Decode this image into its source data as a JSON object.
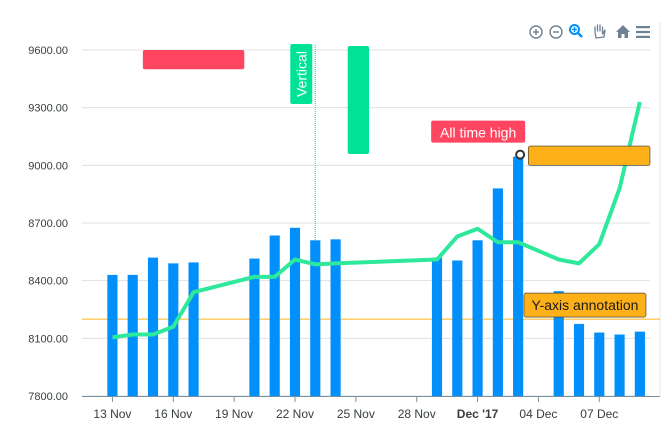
{
  "chart_data": {
    "type": "bar",
    "ylim": [
      7800,
      9600
    ],
    "y_ticks": [
      "7800.00",
      "8100.00",
      "8400.00",
      "8700.00",
      "9000.00",
      "9300.00",
      "9600.00"
    ],
    "y_tick_values": [
      7800,
      8100,
      8400,
      8700,
      9000,
      9300,
      9600
    ],
    "x_range": [
      "2017-11-12",
      "2017-12-09"
    ],
    "x_ticks": [
      {
        "date": "2017-11-13",
        "label": "13 Nov",
        "bold": false
      },
      {
        "date": "2017-11-16",
        "label": "16 Nov",
        "bold": false
      },
      {
        "date": "2017-11-19",
        "label": "19 Nov",
        "bold": false
      },
      {
        "date": "2017-11-22",
        "label": "22 Nov",
        "bold": false
      },
      {
        "date": "2017-11-25",
        "label": "25 Nov",
        "bold": false
      },
      {
        "date": "2017-11-28",
        "label": "28 Nov",
        "bold": false
      },
      {
        "date": "2017-12-01",
        "label": "Dec '17",
        "bold": true
      },
      {
        "date": "2017-12-04",
        "label": "04 Dec",
        "bold": false
      },
      {
        "date": "2017-12-07",
        "label": "07 Dec",
        "bold": false
      }
    ],
    "grid": true,
    "series": [
      {
        "kind": "bar",
        "color": "#008ffb",
        "points": [
          {
            "x": "2017-11-13",
            "y": 8430
          },
          {
            "x": "2017-11-14",
            "y": 8430
          },
          {
            "x": "2017-11-15",
            "y": 8520
          },
          {
            "x": "2017-11-16",
            "y": 8490
          },
          {
            "x": "2017-11-17",
            "y": 8495
          },
          {
            "x": "2017-11-20",
            "y": 8515
          },
          {
            "x": "2017-11-21",
            "y": 8635
          },
          {
            "x": "2017-11-22",
            "y": 8675
          },
          {
            "x": "2017-11-23",
            "y": 8610
          },
          {
            "x": "2017-11-24",
            "y": 8615
          },
          {
            "x": "2017-11-29",
            "y": 8520
          },
          {
            "x": "2017-11-30",
            "y": 8505
          },
          {
            "x": "2017-12-01",
            "y": 8610
          },
          {
            "x": "2017-12-02",
            "y": 8880
          },
          {
            "x": "2017-12-03",
            "y": 9045
          },
          {
            "x": "2017-12-05",
            "y": 8345
          },
          {
            "x": "2017-12-06",
            "y": 8175
          },
          {
            "x": "2017-12-07",
            "y": 8130
          },
          {
            "x": "2017-12-08",
            "y": 8120
          },
          {
            "x": "2017-12-09",
            "y": 8135
          }
        ]
      },
      {
        "kind": "line",
        "color": "#2ee89b",
        "points": [
          {
            "x": "2017-11-13",
            "y": 8105
          },
          {
            "x": "2017-11-14",
            "y": 8120
          },
          {
            "x": "2017-11-15",
            "y": 8120
          },
          {
            "x": "2017-11-16",
            "y": 8160
          },
          {
            "x": "2017-11-17",
            "y": 8340
          },
          {
            "x": "2017-11-20",
            "y": 8420
          },
          {
            "x": "2017-11-21",
            "y": 8420
          },
          {
            "x": "2017-11-22",
            "y": 8510
          },
          {
            "x": "2017-11-23",
            "y": 8485
          },
          {
            "x": "2017-11-24",
            "y": 8490
          },
          {
            "x": "2017-11-29",
            "y": 8510
          },
          {
            "x": "2017-11-30",
            "y": 8630
          },
          {
            "x": "2017-12-01",
            "y": 8670
          },
          {
            "x": "2017-12-02",
            "y": 8600
          },
          {
            "x": "2017-12-03",
            "y": 8600
          },
          {
            "x": "2017-12-05",
            "y": 8510
          },
          {
            "x": "2017-12-06",
            "y": 8490
          },
          {
            "x": "2017-12-07",
            "y": 8590
          },
          {
            "x": "2017-12-08",
            "y": 8880
          },
          {
            "x": "2017-12-09",
            "y": 9330
          }
        ]
      }
    ],
    "annotations": {
      "xaxis": [
        {
          "x": "2017-11-23",
          "kind": "line",
          "color": "#00e396",
          "label": "Vertical"
        },
        {
          "x": "2017-11-25",
          "x2": "2017-11-26",
          "kind": "range",
          "color": "#00e396",
          "label": ""
        }
      ],
      "points": [
        {
          "x": "2017-12-03",
          "y": 9045,
          "label": "All time high",
          "label_color": "#ff4560"
        }
      ],
      "yaxis": [
        {
          "y": 8200,
          "kind": "line",
          "color": "#feb019",
          "label": "Y-axis annotation",
          "label_position": "right"
        }
      ],
      "boxes": [
        {
          "x": "2017-11-15",
          "x2": "2017-11-20",
          "y": 9600,
          "y2": 9500,
          "color": "#ff4560"
        },
        {
          "x": "2017-12-04",
          "x2": "2017-12-10",
          "y": 9100,
          "y2": 9000,
          "color": "#feb019"
        }
      ]
    }
  },
  "toolbar": {
    "icons": [
      "zoom-in-icon",
      "zoom-out-icon",
      "selection-zoom-icon",
      "pan-hand-icon",
      "home-reset-icon",
      "menu-icon"
    ]
  },
  "colors": {
    "bar": "#008ffb",
    "line": "#2ee89b",
    "grid": "#e0e0e0",
    "annotation_red": "#ff4560",
    "annotation_green": "#00e396",
    "annotation_orange": "#feb019"
  }
}
